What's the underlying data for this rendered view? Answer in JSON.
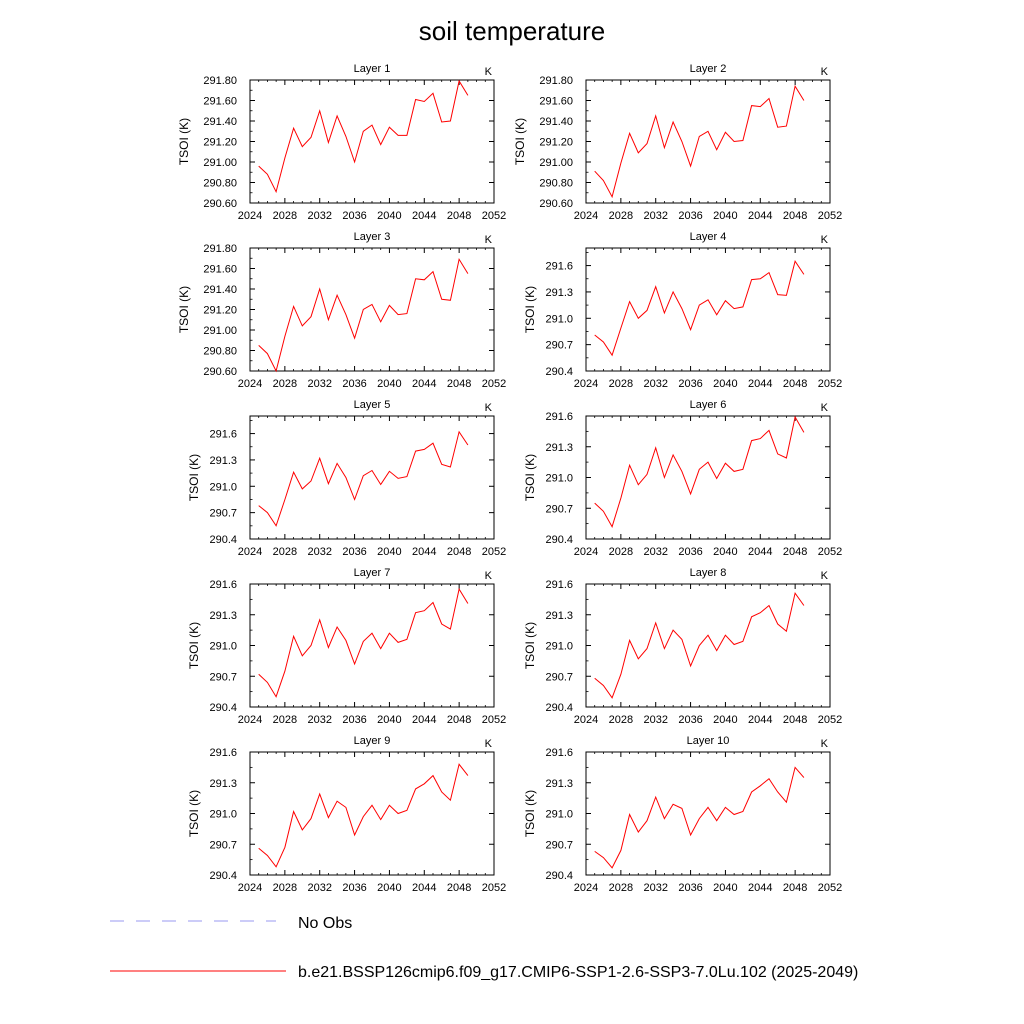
{
  "title": "soil temperature",
  "legend": [
    {
      "label": "No Obs",
      "color": "#9a9af0",
      "style": "dashed"
    },
    {
      "label": "b.e21.BSSP126cmip6.f09_g17.CMIP6-SSP1-2.6-SSP3-7.0Lu.102 (2025-2049)",
      "color": "#ff0000",
      "style": "solid"
    }
  ],
  "chart_data": [
    {
      "type": "line",
      "title": "Layer 1",
      "ylabel": "TSOI  (K)",
      "units_label": "K",
      "xlim": [
        2024,
        2052
      ],
      "ylim": [
        290.6,
        291.8
      ],
      "xticks": [
        2024,
        2028,
        2032,
        2036,
        2040,
        2044,
        2048,
        2052
      ],
      "yticks": [
        "290.60",
        "290.80",
        "291.00",
        "291.20",
        "291.40",
        "291.60",
        "291.80"
      ],
      "series": [
        {
          "x": [
            2025,
            2026,
            2027,
            2028,
            2029,
            2030,
            2031,
            2032,
            2033,
            2034,
            2035,
            2036,
            2037,
            2038,
            2039,
            2040,
            2041,
            2042,
            2043,
            2044,
            2045,
            2046,
            2047,
            2048,
            2049
          ],
          "y": [
            290.96,
            290.88,
            290.71,
            291.04,
            291.33,
            291.15,
            291.24,
            291.5,
            291.19,
            291.45,
            291.25,
            291.0,
            291.3,
            291.36,
            291.17,
            291.34,
            291.26,
            291.26,
            291.61,
            291.59,
            291.67,
            291.39,
            291.4,
            291.79,
            291.65
          ]
        }
      ]
    },
    {
      "type": "line",
      "title": "Layer 2",
      "ylabel": "TSOI  (K)",
      "units_label": "K",
      "xlim": [
        2024,
        2052
      ],
      "ylim": [
        290.6,
        291.8
      ],
      "xticks": [
        2024,
        2028,
        2032,
        2036,
        2040,
        2044,
        2048,
        2052
      ],
      "yticks": [
        "290.60",
        "290.80",
        "291.00",
        "291.20",
        "291.40",
        "291.60",
        "291.80"
      ],
      "series": [
        {
          "x": [
            2025,
            2026,
            2027,
            2028,
            2029,
            2030,
            2031,
            2032,
            2033,
            2034,
            2035,
            2036,
            2037,
            2038,
            2039,
            2040,
            2041,
            2042,
            2043,
            2044,
            2045,
            2046,
            2047,
            2048,
            2049
          ],
          "y": [
            290.91,
            290.82,
            290.66,
            290.99,
            291.28,
            291.09,
            291.18,
            291.45,
            291.14,
            291.39,
            291.2,
            290.96,
            291.25,
            291.3,
            291.12,
            291.29,
            291.2,
            291.21,
            291.55,
            291.54,
            291.62,
            291.34,
            291.35,
            291.74,
            291.6
          ]
        }
      ]
    },
    {
      "type": "line",
      "title": "Layer 3",
      "ylabel": "TSOI  (K)",
      "units_label": "K",
      "xlim": [
        2024,
        2052
      ],
      "ylim": [
        290.6,
        291.8
      ],
      "xticks": [
        2024,
        2028,
        2032,
        2036,
        2040,
        2044,
        2048,
        2052
      ],
      "yticks": [
        "290.60",
        "290.80",
        "291.00",
        "291.20",
        "291.40",
        "291.60",
        "291.80"
      ],
      "series": [
        {
          "x": [
            2025,
            2026,
            2027,
            2028,
            2029,
            2030,
            2031,
            2032,
            2033,
            2034,
            2035,
            2036,
            2037,
            2038,
            2039,
            2040,
            2041,
            2042,
            2043,
            2044,
            2045,
            2046,
            2047,
            2048,
            2049
          ],
          "y": [
            290.85,
            290.77,
            290.6,
            290.94,
            291.23,
            291.04,
            291.13,
            291.4,
            291.1,
            291.34,
            291.15,
            290.92,
            291.2,
            291.25,
            291.08,
            291.24,
            291.15,
            291.16,
            291.5,
            291.49,
            291.57,
            291.3,
            291.29,
            291.69,
            291.55
          ]
        }
      ]
    },
    {
      "type": "line",
      "title": "Layer 4",
      "ylabel": "TSOI  (K)",
      "units_label": "K",
      "xlim": [
        2024,
        2052
      ],
      "ylim": [
        290.4,
        291.8
      ],
      "xticks": [
        2024,
        2028,
        2032,
        2036,
        2040,
        2044,
        2048,
        2052
      ],
      "yticks": [
        "290.4",
        "290.7",
        "291.0",
        "291.3",
        "291.6"
      ],
      "series": [
        {
          "x": [
            2025,
            2026,
            2027,
            2028,
            2029,
            2030,
            2031,
            2032,
            2033,
            2034,
            2035,
            2036,
            2037,
            2038,
            2039,
            2040,
            2041,
            2042,
            2043,
            2044,
            2045,
            2046,
            2047,
            2048,
            2049
          ],
          "y": [
            290.81,
            290.73,
            290.58,
            290.89,
            291.19,
            291.0,
            291.09,
            291.36,
            291.06,
            291.3,
            291.11,
            290.87,
            291.15,
            291.21,
            291.04,
            291.2,
            291.11,
            291.13,
            291.44,
            291.45,
            291.52,
            291.27,
            291.26,
            291.65,
            291.5
          ]
        }
      ]
    },
    {
      "type": "line",
      "title": "Layer 5",
      "ylabel": "TSOI  (K)",
      "units_label": "K",
      "xlim": [
        2024,
        2052
      ],
      "ylim": [
        290.4,
        291.8
      ],
      "xticks": [
        2024,
        2028,
        2032,
        2036,
        2040,
        2044,
        2048,
        2052
      ],
      "yticks": [
        "290.4",
        "290.7",
        "291.0",
        "291.3",
        "291.6"
      ],
      "series": [
        {
          "x": [
            2025,
            2026,
            2027,
            2028,
            2029,
            2030,
            2031,
            2032,
            2033,
            2034,
            2035,
            2036,
            2037,
            2038,
            2039,
            2040,
            2041,
            2042,
            2043,
            2044,
            2045,
            2046,
            2047,
            2048,
            2049
          ],
          "y": [
            290.78,
            290.7,
            290.55,
            290.85,
            291.16,
            290.97,
            291.06,
            291.32,
            291.03,
            291.26,
            291.1,
            290.85,
            291.12,
            291.18,
            291.02,
            291.17,
            291.09,
            291.11,
            291.4,
            291.42,
            291.49,
            291.25,
            291.22,
            291.62,
            291.47
          ]
        }
      ]
    },
    {
      "type": "line",
      "title": "Layer 6",
      "ylabel": "TSOI  (K)",
      "units_label": "K",
      "xlim": [
        2024,
        2052
      ],
      "ylim": [
        290.4,
        291.6
      ],
      "xticks": [
        2024,
        2028,
        2032,
        2036,
        2040,
        2044,
        2048,
        2052
      ],
      "yticks": [
        "290.4",
        "290.7",
        "291.0",
        "291.3",
        "291.6"
      ],
      "series": [
        {
          "x": [
            2025,
            2026,
            2027,
            2028,
            2029,
            2030,
            2031,
            2032,
            2033,
            2034,
            2035,
            2036,
            2037,
            2038,
            2039,
            2040,
            2041,
            2042,
            2043,
            2044,
            2045,
            2046,
            2047,
            2048,
            2049
          ],
          "y": [
            290.75,
            290.67,
            290.52,
            290.8,
            291.12,
            290.93,
            291.03,
            291.29,
            291.0,
            291.22,
            291.06,
            290.84,
            291.08,
            291.15,
            290.99,
            291.14,
            291.06,
            291.08,
            291.36,
            291.38,
            291.46,
            291.23,
            291.19,
            291.59,
            291.44
          ]
        }
      ]
    },
    {
      "type": "line",
      "title": "Layer 7",
      "ylabel": "TSOI  (K)",
      "units_label": "K",
      "xlim": [
        2024,
        2052
      ],
      "ylim": [
        290.4,
        291.6
      ],
      "xticks": [
        2024,
        2028,
        2032,
        2036,
        2040,
        2044,
        2048,
        2052
      ],
      "yticks": [
        "290.4",
        "290.7",
        "291.0",
        "291.3",
        "291.6"
      ],
      "series": [
        {
          "x": [
            2025,
            2026,
            2027,
            2028,
            2029,
            2030,
            2031,
            2032,
            2033,
            2034,
            2035,
            2036,
            2037,
            2038,
            2039,
            2040,
            2041,
            2042,
            2043,
            2044,
            2045,
            2046,
            2047,
            2048,
            2049
          ],
          "y": [
            290.72,
            290.64,
            290.5,
            290.75,
            291.09,
            290.9,
            291.0,
            291.25,
            290.98,
            291.18,
            291.05,
            290.82,
            291.04,
            291.12,
            290.97,
            291.12,
            291.03,
            291.06,
            291.32,
            291.34,
            291.42,
            291.21,
            291.16,
            291.55,
            291.41
          ]
        }
      ]
    },
    {
      "type": "line",
      "title": "Layer 8",
      "ylabel": "TSOI  (K)",
      "units_label": "K",
      "xlim": [
        2024,
        2052
      ],
      "ylim": [
        290.4,
        291.6
      ],
      "xticks": [
        2024,
        2028,
        2032,
        2036,
        2040,
        2044,
        2048,
        2052
      ],
      "yticks": [
        "290.4",
        "290.7",
        "291.0",
        "291.3",
        "291.6"
      ],
      "series": [
        {
          "x": [
            2025,
            2026,
            2027,
            2028,
            2029,
            2030,
            2031,
            2032,
            2033,
            2034,
            2035,
            2036,
            2037,
            2038,
            2039,
            2040,
            2041,
            2042,
            2043,
            2044,
            2045,
            2046,
            2047,
            2048,
            2049
          ],
          "y": [
            290.68,
            290.61,
            290.49,
            290.72,
            291.05,
            290.87,
            290.97,
            291.22,
            290.97,
            291.15,
            291.06,
            290.8,
            291.0,
            291.1,
            290.95,
            291.1,
            291.01,
            291.04,
            291.28,
            291.32,
            291.39,
            291.21,
            291.14,
            291.51,
            291.39
          ]
        }
      ]
    },
    {
      "type": "line",
      "title": "Layer 9",
      "ylabel": "TSOI  (K)",
      "units_label": "K",
      "xlim": [
        2024,
        2052
      ],
      "ylim": [
        290.4,
        291.6
      ],
      "xticks": [
        2024,
        2028,
        2032,
        2036,
        2040,
        2044,
        2048,
        2052
      ],
      "yticks": [
        "290.4",
        "290.7",
        "291.0",
        "291.3",
        "291.6"
      ],
      "series": [
        {
          "x": [
            2025,
            2026,
            2027,
            2028,
            2029,
            2030,
            2031,
            2032,
            2033,
            2034,
            2035,
            2036,
            2037,
            2038,
            2039,
            2040,
            2041,
            2042,
            2043,
            2044,
            2045,
            2046,
            2047,
            2048,
            2049
          ],
          "y": [
            290.66,
            290.59,
            290.48,
            290.67,
            291.02,
            290.84,
            290.95,
            291.19,
            290.96,
            291.12,
            291.06,
            290.79,
            290.97,
            291.08,
            290.94,
            291.08,
            291.0,
            291.03,
            291.24,
            291.29,
            291.37,
            291.21,
            291.13,
            291.48,
            291.37
          ]
        }
      ]
    },
    {
      "type": "line",
      "title": "Layer 10",
      "ylabel": "TSOI  (K)",
      "units_label": "K",
      "xlim": [
        2024,
        2052
      ],
      "ylim": [
        290.4,
        291.6
      ],
      "xticks": [
        2024,
        2028,
        2032,
        2036,
        2040,
        2044,
        2048,
        2052
      ],
      "yticks": [
        "290.4",
        "290.7",
        "291.0",
        "291.3",
        "291.6"
      ],
      "series": [
        {
          "x": [
            2025,
            2026,
            2027,
            2028,
            2029,
            2030,
            2031,
            2032,
            2033,
            2034,
            2035,
            2036,
            2037,
            2038,
            2039,
            2040,
            2041,
            2042,
            2043,
            2044,
            2045,
            2046,
            2047,
            2048,
            2049
          ],
          "y": [
            290.63,
            290.57,
            290.47,
            290.64,
            290.99,
            290.82,
            290.93,
            291.16,
            290.95,
            291.09,
            291.05,
            290.79,
            290.95,
            291.06,
            290.93,
            291.06,
            290.99,
            291.02,
            291.21,
            291.27,
            291.34,
            291.21,
            291.11,
            291.45,
            291.35
          ]
        }
      ]
    }
  ]
}
